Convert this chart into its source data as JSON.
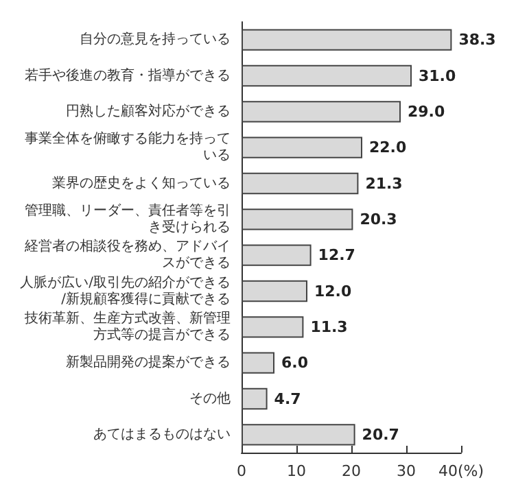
{
  "chart_data": {
    "type": "bar",
    "orientation": "horizontal",
    "categories": [
      "自分の意見を持っている",
      "若手や後進の教育・指導ができる",
      "円熟した顧客対応ができる",
      "事業全体を俯瞰する能力を持っている",
      "業界の歴史をよく知っている",
      "管理職、リーダー、責任者等を引き受けられる",
      "経営者の相談役を務め、アドバイスができる",
      "人脈が広い/取引先の紹介ができる/新規顧客獲得に貢献できる",
      "技術革新、生産方式改善、新管理方式等の提言ができる",
      "新製品開発の提案ができる",
      "その他",
      "あてはまるものはない"
    ],
    "values": [
      38.3,
      31.0,
      29.0,
      22.0,
      21.3,
      20.3,
      12.7,
      12.0,
      11.3,
      6.0,
      4.7,
      20.7
    ],
    "value_labels": [
      "38.3",
      "31.0",
      "29.0",
      "22.0",
      "21.3",
      "20.3",
      "12.7",
      "12.0",
      "11.3",
      "6.0",
      "4.7",
      "20.7"
    ],
    "color": "#d9d9d9",
    "xlim": [
      0,
      40
    ],
    "xticks": [
      0,
      10,
      20,
      30,
      {
        "value": 40,
        "label": "40(%)"
      }
    ],
    "grid": false
  }
}
